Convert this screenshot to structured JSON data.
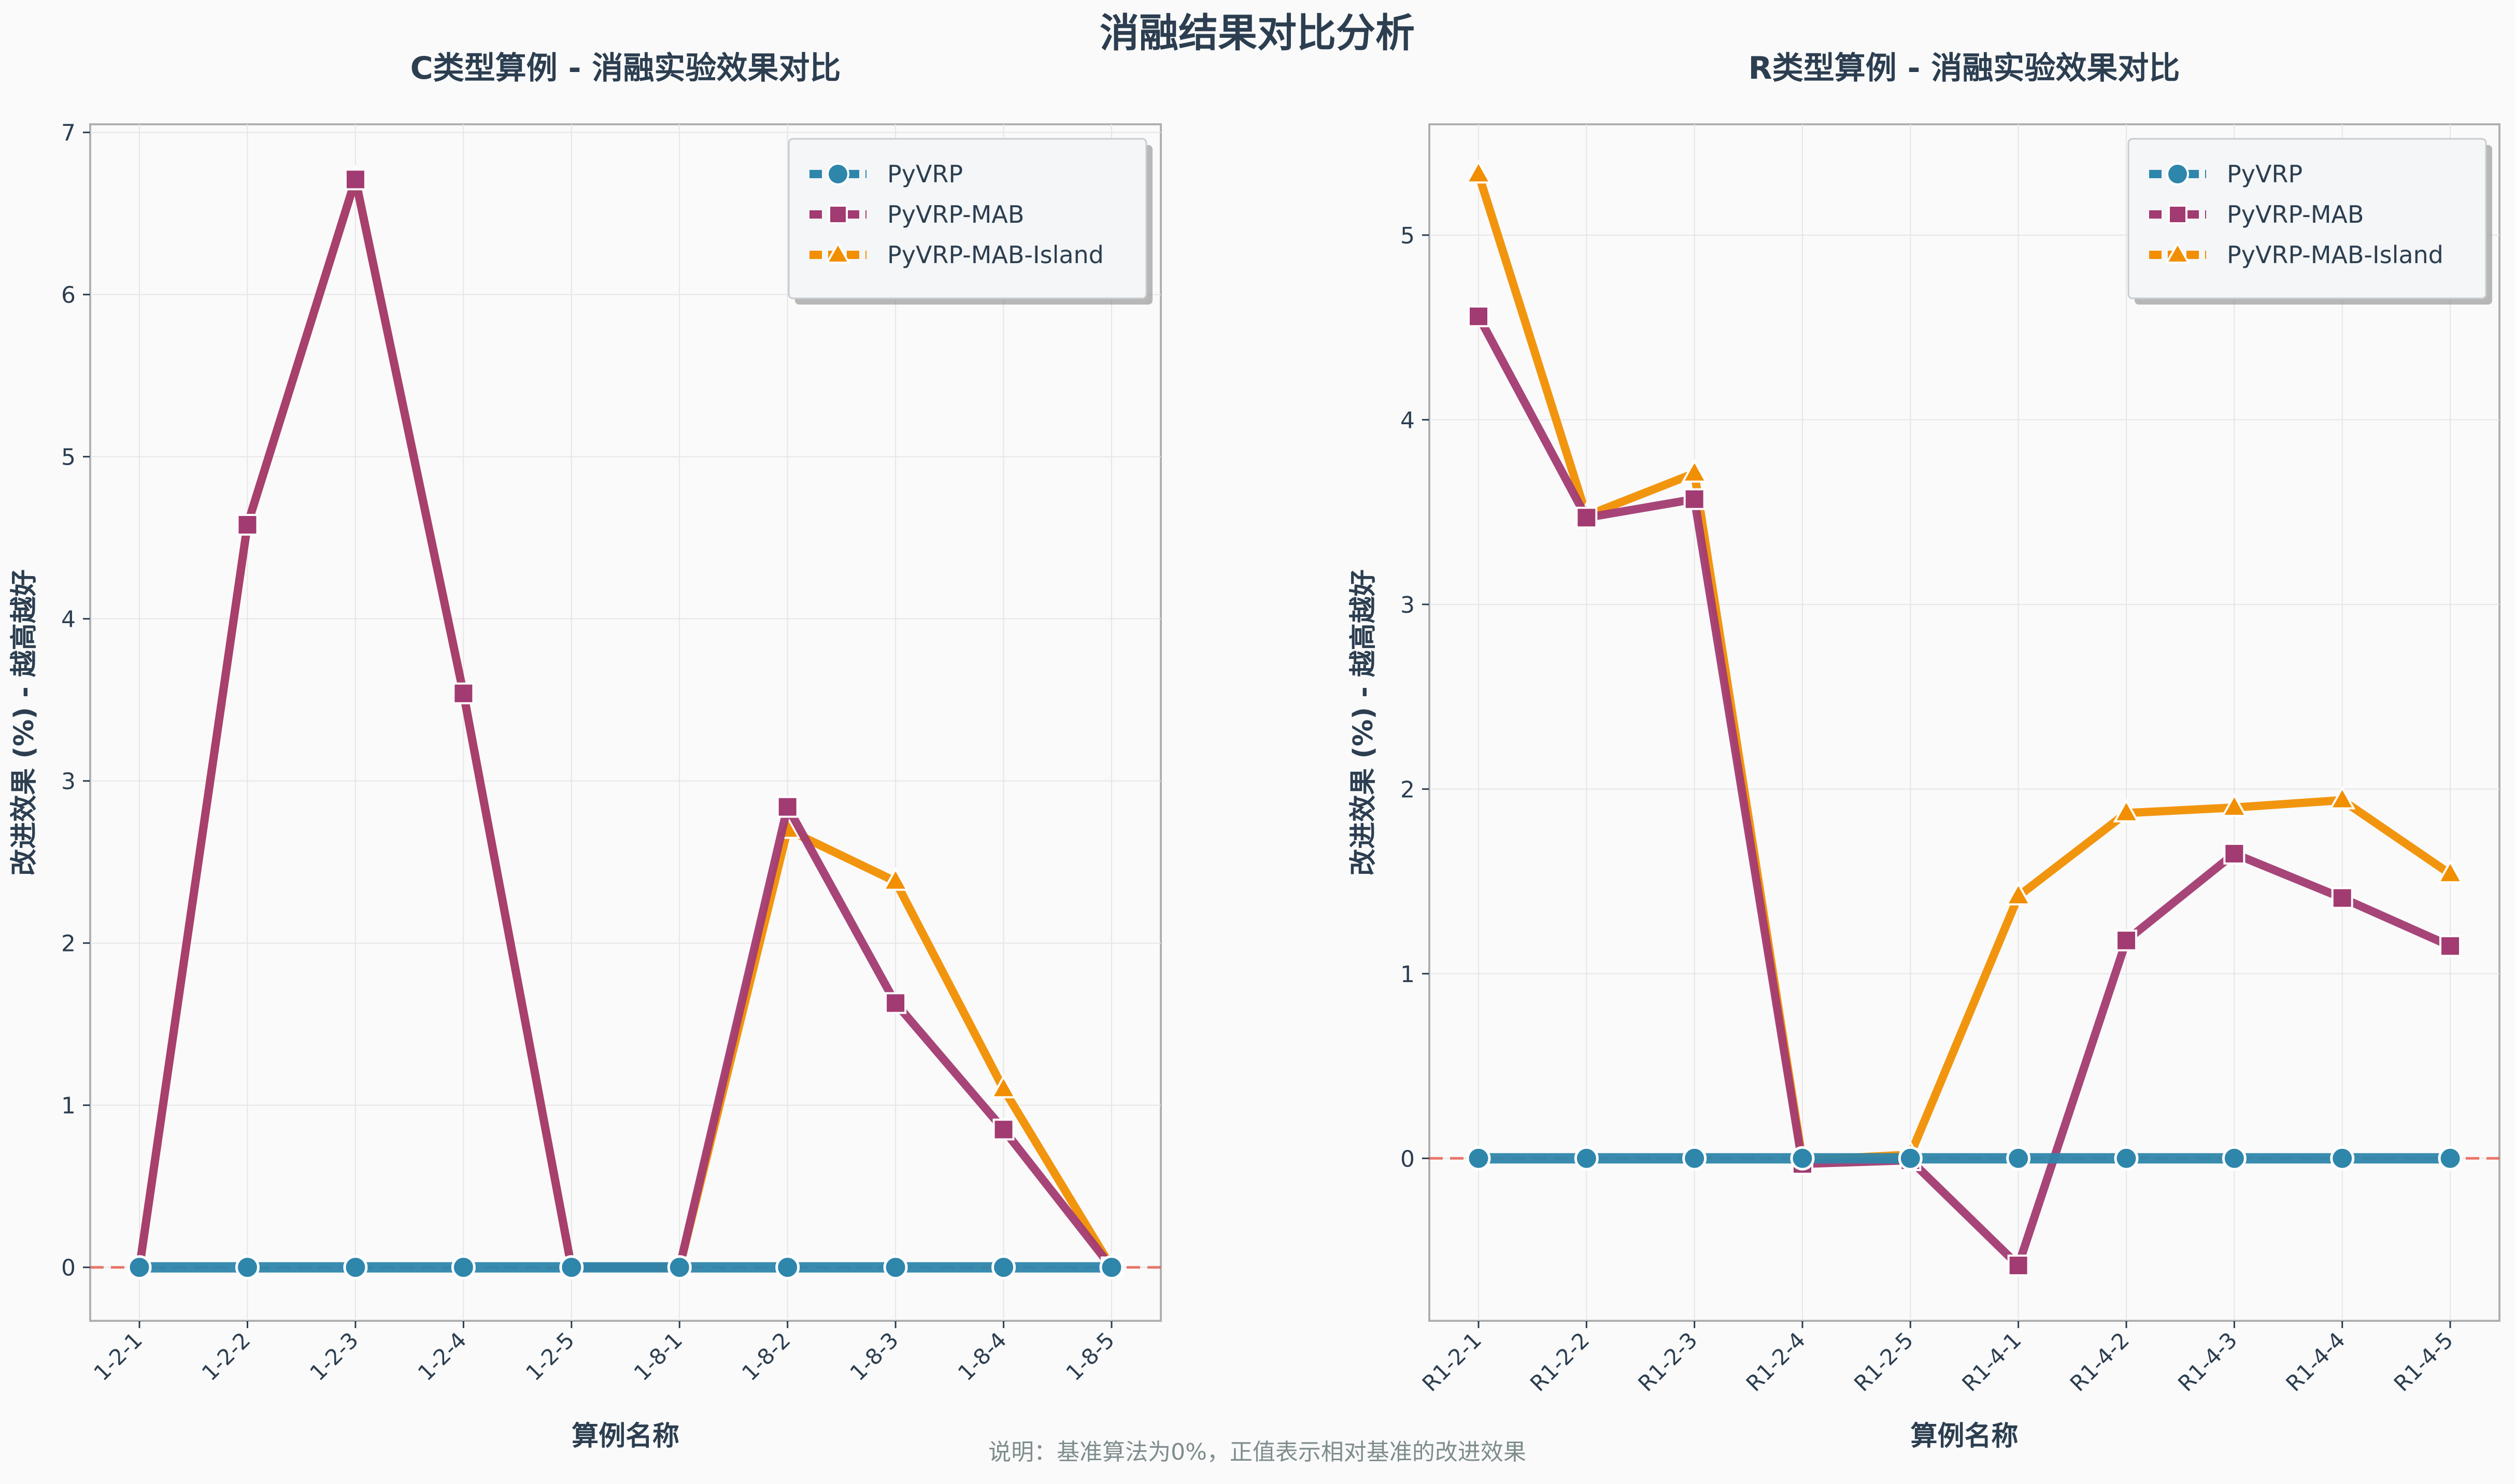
{
  "figure": {
    "suptitle": "消融结果对比分析",
    "footnote": "说明：基准算法为0%，正值表示相对基准的改进效果"
  },
  "colors": {
    "PyVRP": "#2e86ab",
    "PyVRP-MAB": "#a23b72",
    "PyVRP-MAB-Island": "#f18f01",
    "baseline": "#e74c3c",
    "text": "#2c3e50",
    "grid": "#e6e6e6",
    "axis": "#b0b0b0",
    "footnote": "#7f8c8d"
  },
  "chart_data": [
    {
      "type": "line",
      "title": "C类型算例 - 消融实验效果对比",
      "xlabel": "算例名称",
      "ylabel": "改进效果 (%) - 越高越好",
      "categories": [
        "1-2-1",
        "1-2-2",
        "1-2-3",
        "1-2-4",
        "1-2-5",
        "1-8-1",
        "1-8-2",
        "1-8-3",
        "1-8-4",
        "1-8-5"
      ],
      "ylim": [
        -0.33,
        7.05
      ],
      "yticks": [
        0,
        1,
        2,
        3,
        4,
        5,
        6,
        7
      ],
      "grid": true,
      "baseline": 0,
      "legend": "top-right",
      "series": [
        {
          "name": "PyVRP-MAB-Island",
          "marker": "triangle",
          "values": [
            0,
            4.58,
            6.71,
            3.54,
            0,
            0,
            2.7,
            2.38,
            1.1,
            0
          ]
        },
        {
          "name": "PyVRP-MAB",
          "marker": "square",
          "values": [
            0,
            4.58,
            6.71,
            3.54,
            0,
            0,
            2.84,
            1.63,
            0.85,
            0
          ]
        },
        {
          "name": "PyVRP",
          "marker": "circle",
          "values": [
            0,
            0,
            0,
            0,
            0,
            0,
            0,
            0,
            0,
            0
          ]
        }
      ]
    },
    {
      "type": "line",
      "title": "R类型算例 - 消融实验效果对比",
      "xlabel": "算例名称",
      "ylabel": "改进效果 (%) - 越高越好",
      "categories": [
        "R1-2-1",
        "R1-2-2",
        "R1-2-3",
        "R1-2-4",
        "R1-2-5",
        "R1-4-1",
        "R1-4-2",
        "R1-4-3",
        "R1-4-4",
        "R1-4-5"
      ],
      "ylim": [
        -0.88,
        5.6
      ],
      "yticks": [
        0,
        1,
        2,
        3,
        4,
        5
      ],
      "grid": true,
      "baseline": 0,
      "legend": "top-right",
      "series": [
        {
          "name": "PyVRP-MAB-Island",
          "marker": "triangle",
          "values": [
            5.33,
            3.48,
            3.71,
            -0.01,
            0.02,
            1.42,
            1.87,
            1.9,
            1.94,
            1.54
          ]
        },
        {
          "name": "PyVRP-MAB",
          "marker": "square",
          "values": [
            4.56,
            3.47,
            3.57,
            -0.03,
            -0.01,
            -0.58,
            1.18,
            1.65,
            1.41,
            1.15
          ]
        },
        {
          "name": "PyVRP",
          "marker": "circle",
          "values": [
            0,
            0,
            0,
            0,
            0,
            0,
            0,
            0,
            0,
            0
          ]
        }
      ]
    }
  ],
  "legend_order": [
    "PyVRP",
    "PyVRP-MAB",
    "PyVRP-MAB-Island"
  ]
}
